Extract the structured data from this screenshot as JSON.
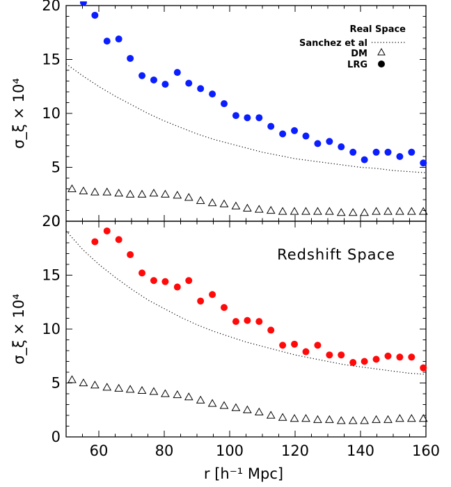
{
  "chart_data": [
    {
      "type": "scatter",
      "panel": "Real Space",
      "title": "",
      "xlabel": "r [h⁻¹ Mpc]",
      "ylabel": "σ_ξ × 10⁴",
      "xlim": [
        50,
        160
      ],
      "ylim": [
        0,
        20
      ],
      "x_ticks": [
        60,
        80,
        100,
        120,
        140,
        160
      ],
      "y_ticks": [
        0,
        5,
        10,
        15,
        20
      ],
      "legend_position": "top-right",
      "legend_title": "Real Space",
      "legend": [
        {
          "label": "Sanchez et al",
          "marker": "dotted-line"
        },
        {
          "label": "DM",
          "marker": "open-triangle"
        },
        {
          "label": "LRG",
          "marker": "filled-circle"
        }
      ],
      "series": [
        {
          "name": "LRG",
          "color": "#0a1eff",
          "marker": "filled-circle",
          "points": [
            [
              55.3,
              20.3
            ],
            [
              58.8,
              19.1
            ],
            [
              62.5,
              16.7
            ],
            [
              66.1,
              16.9
            ],
            [
              69.6,
              15.1
            ],
            [
              73.2,
              13.5
            ],
            [
              76.8,
              13.1
            ],
            [
              80.3,
              12.7
            ],
            [
              84.0,
              13.8
            ],
            [
              87.5,
              12.8
            ],
            [
              91.1,
              12.3
            ],
            [
              94.7,
              11.8
            ],
            [
              98.3,
              10.9
            ],
            [
              101.9,
              9.8
            ],
            [
              105.4,
              9.6
            ],
            [
              109.0,
              9.6
            ],
            [
              112.6,
              8.8
            ],
            [
              116.2,
              8.1
            ],
            [
              119.8,
              8.4
            ],
            [
              123.3,
              7.9
            ],
            [
              126.9,
              7.2
            ],
            [
              130.5,
              7.4
            ],
            [
              134.1,
              6.9
            ],
            [
              137.7,
              6.4
            ],
            [
              141.2,
              5.7
            ],
            [
              144.8,
              6.4
            ],
            [
              148.4,
              6.4
            ],
            [
              152.0,
              6.0
            ],
            [
              155.6,
              6.4
            ],
            [
              159.2,
              5.4
            ]
          ]
        },
        {
          "name": "DM",
          "color": "#000000",
          "marker": "open-triangle",
          "points": [
            [
              51.8,
              3.0
            ],
            [
              55.3,
              2.8
            ],
            [
              58.8,
              2.7
            ],
            [
              62.5,
              2.7
            ],
            [
              66.1,
              2.6
            ],
            [
              69.6,
              2.5
            ],
            [
              73.2,
              2.5
            ],
            [
              76.8,
              2.6
            ],
            [
              80.3,
              2.5
            ],
            [
              84.0,
              2.4
            ],
            [
              87.5,
              2.2
            ],
            [
              91.1,
              1.9
            ],
            [
              94.7,
              1.7
            ],
            [
              98.3,
              1.6
            ],
            [
              101.9,
              1.4
            ],
            [
              105.4,
              1.2
            ],
            [
              109.0,
              1.1
            ],
            [
              112.6,
              1.0
            ],
            [
              116.2,
              0.9
            ],
            [
              119.8,
              0.9
            ],
            [
              123.3,
              0.9
            ],
            [
              126.9,
              0.9
            ],
            [
              130.5,
              0.9
            ],
            [
              134.1,
              0.8
            ],
            [
              137.7,
              0.8
            ],
            [
              141.2,
              0.8
            ],
            [
              144.8,
              0.9
            ],
            [
              148.4,
              0.9
            ],
            [
              152.0,
              0.9
            ],
            [
              155.6,
              0.9
            ],
            [
              159.2,
              0.9
            ]
          ]
        },
        {
          "name": "Sanchez et al",
          "color": "#000000",
          "marker": "dotted-line",
          "points": [
            [
              50,
              14.6
            ],
            [
              55,
              13.5
            ],
            [
              60,
              12.5
            ],
            [
              65,
              11.6
            ],
            [
              70,
              10.8
            ],
            [
              75,
              10.0
            ],
            [
              80,
              9.3
            ],
            [
              85,
              8.7
            ],
            [
              90,
              8.1
            ],
            [
              95,
              7.6
            ],
            [
              100,
              7.2
            ],
            [
              105,
              6.8
            ],
            [
              110,
              6.4
            ],
            [
              115,
              6.1
            ],
            [
              120,
              5.8
            ],
            [
              125,
              5.6
            ],
            [
              130,
              5.4
            ],
            [
              135,
              5.2
            ],
            [
              140,
              5.0
            ],
            [
              145,
              4.9
            ],
            [
              150,
              4.7
            ],
            [
              155,
              4.6
            ],
            [
              160,
              4.5
            ]
          ]
        }
      ]
    },
    {
      "type": "scatter",
      "panel": "Redshift Space",
      "title": "",
      "xlabel": "r [h⁻¹ Mpc]",
      "ylabel": "σ_ξ × 10⁴",
      "xlim": [
        50,
        160
      ],
      "ylim": [
        0,
        20
      ],
      "x_ticks": [
        60,
        80,
        100,
        120,
        140,
        160
      ],
      "y_ticks": [
        0,
        5,
        10,
        15,
        20
      ],
      "panel_label": "Redshift Space",
      "series": [
        {
          "name": "LRG",
          "color": "#ff0a0a",
          "marker": "filled-circle",
          "points": [
            [
              58.8,
              18.1
            ],
            [
              62.5,
              19.1
            ],
            [
              66.1,
              18.3
            ],
            [
              69.6,
              16.9
            ],
            [
              73.2,
              15.2
            ],
            [
              76.8,
              14.5
            ],
            [
              80.3,
              14.4
            ],
            [
              84.0,
              13.9
            ],
            [
              87.5,
              14.5
            ],
            [
              91.1,
              12.6
            ],
            [
              94.7,
              13.2
            ],
            [
              98.3,
              12.0
            ],
            [
              101.9,
              10.7
            ],
            [
              105.4,
              10.8
            ],
            [
              109.0,
              10.7
            ],
            [
              112.6,
              9.9
            ],
            [
              116.2,
              8.5
            ],
            [
              119.8,
              8.6
            ],
            [
              123.3,
              7.9
            ],
            [
              126.9,
              8.5
            ],
            [
              130.5,
              7.6
            ],
            [
              134.1,
              7.6
            ],
            [
              137.7,
              6.9
            ],
            [
              141.2,
              7.0
            ],
            [
              144.8,
              7.2
            ],
            [
              148.4,
              7.5
            ],
            [
              152.0,
              7.4
            ],
            [
              155.6,
              7.4
            ],
            [
              159.2,
              6.4
            ]
          ]
        },
        {
          "name": "DM",
          "color": "#000000",
          "marker": "open-triangle",
          "points": [
            [
              51.8,
              5.3
            ],
            [
              55.3,
              5.0
            ],
            [
              58.8,
              4.8
            ],
            [
              62.5,
              4.6
            ],
            [
              66.1,
              4.5
            ],
            [
              69.6,
              4.4
            ],
            [
              73.2,
              4.3
            ],
            [
              76.8,
              4.2
            ],
            [
              80.3,
              4.0
            ],
            [
              84.0,
              3.9
            ],
            [
              87.5,
              3.7
            ],
            [
              91.1,
              3.4
            ],
            [
              94.7,
              3.1
            ],
            [
              98.3,
              2.9
            ],
            [
              101.9,
              2.7
            ],
            [
              105.4,
              2.5
            ],
            [
              109.0,
              2.3
            ],
            [
              112.6,
              2.0
            ],
            [
              116.2,
              1.8
            ],
            [
              119.8,
              1.7
            ],
            [
              123.3,
              1.7
            ],
            [
              126.9,
              1.6
            ],
            [
              130.5,
              1.6
            ],
            [
              134.1,
              1.5
            ],
            [
              137.7,
              1.5
            ],
            [
              141.2,
              1.5
            ],
            [
              144.8,
              1.6
            ],
            [
              148.4,
              1.6
            ],
            [
              152.0,
              1.7
            ],
            [
              155.6,
              1.7
            ],
            [
              159.2,
              1.7
            ]
          ]
        },
        {
          "name": "Sanchez et al",
          "color": "#000000",
          "marker": "dotted-line",
          "points": [
            [
              50,
              19.1
            ],
            [
              55,
              17.4
            ],
            [
              60,
              16.0
            ],
            [
              65,
              14.8
            ],
            [
              70,
              13.7
            ],
            [
              75,
              12.7
            ],
            [
              80,
              11.9
            ],
            [
              85,
              11.1
            ],
            [
              90,
              10.4
            ],
            [
              95,
              9.8
            ],
            [
              100,
              9.3
            ],
            [
              105,
              8.8
            ],
            [
              110,
              8.4
            ],
            [
              115,
              8.0
            ],
            [
              120,
              7.6
            ],
            [
              125,
              7.3
            ],
            [
              130,
              7.0
            ],
            [
              135,
              6.7
            ],
            [
              140,
              6.5
            ],
            [
              145,
              6.3
            ],
            [
              150,
              6.1
            ],
            [
              155,
              5.9
            ],
            [
              160,
              5.8
            ]
          ]
        }
      ]
    }
  ]
}
